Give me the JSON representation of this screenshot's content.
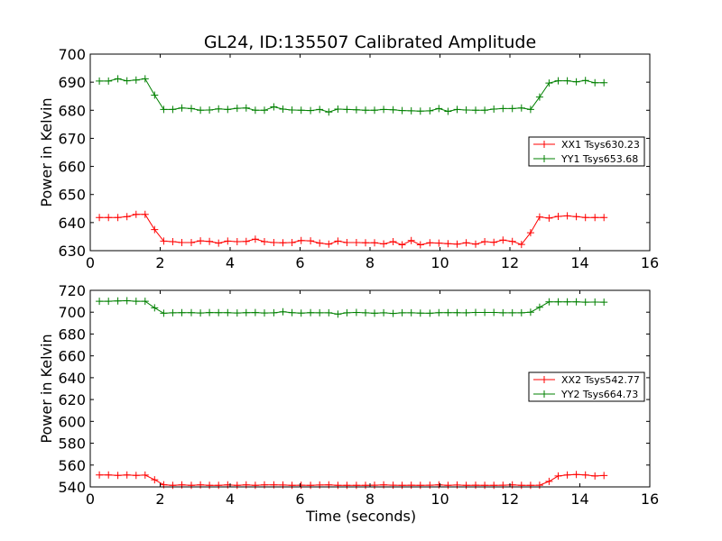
{
  "figure": {
    "title": "GL24, ID:135507 Calibrated Amplitude"
  },
  "chart_data": [
    {
      "type": "line",
      "title": "GL24, ID:135507 Calibrated Amplitude",
      "xlabel": "",
      "ylabel": "Power in Kelvin",
      "xlim": [
        0,
        16
      ],
      "ylim": [
        630,
        700
      ],
      "xticks": [
        0,
        2,
        4,
        6,
        8,
        10,
        12,
        14,
        16
      ],
      "yticks": [
        630,
        640,
        650,
        660,
        670,
        680,
        690,
        700
      ],
      "grid": false,
      "legend_position": "right",
      "x": [
        0.26,
        0.52,
        0.79,
        1.05,
        1.31,
        1.57,
        1.84,
        2.1,
        2.36,
        2.62,
        2.89,
        3.15,
        3.41,
        3.67,
        3.93,
        4.2,
        4.46,
        4.72,
        4.98,
        5.25,
        5.51,
        5.77,
        6.03,
        6.3,
        6.56,
        6.82,
        7.08,
        7.34,
        7.61,
        7.87,
        8.13,
        8.39,
        8.66,
        8.92,
        9.18,
        9.44,
        9.71,
        9.97,
        10.23,
        10.49,
        10.75,
        11.02,
        11.28,
        11.54,
        11.8,
        12.07,
        12.33,
        12.59,
        12.85,
        13.12,
        13.38,
        13.64,
        13.9,
        14.16,
        14.43,
        14.69
      ],
      "series": [
        {
          "name": "XX1 Tsys630.23",
          "color": "#ff0000",
          "values": [
            641.8,
            641.8,
            641.8,
            642.1,
            642.9,
            642.9,
            637.5,
            633.4,
            633.2,
            632.9,
            632.9,
            633.5,
            633.3,
            632.7,
            633.4,
            633.2,
            633.3,
            634.1,
            633.2,
            632.9,
            632.8,
            632.9,
            633.6,
            633.5,
            632.7,
            632.3,
            633.4,
            632.9,
            632.9,
            632.8,
            632.8,
            632.4,
            633.2,
            632.1,
            633.6,
            632.1,
            632.8,
            632.7,
            632.5,
            632.3,
            632.8,
            632.3,
            633.2,
            633.0,
            633.8,
            633.3,
            632.2,
            636.4,
            642.0,
            641.6,
            642.2,
            642.4,
            642.1,
            641.8,
            641.8,
            641.8
          ]
        },
        {
          "name": "YY1 Tsys653.68",
          "color": "#008000",
          "values": [
            690.4,
            690.4,
            691.2,
            690.5,
            690.8,
            691.2,
            685.4,
            680.3,
            680.3,
            680.8,
            680.6,
            680.0,
            680.1,
            680.5,
            680.3,
            680.7,
            680.8,
            680.0,
            680.0,
            681.2,
            680.4,
            680.1,
            680.0,
            679.9,
            680.3,
            679.4,
            680.4,
            680.3,
            680.2,
            680.0,
            680.0,
            680.3,
            680.2,
            679.9,
            679.8,
            679.7,
            679.8,
            680.6,
            679.6,
            680.3,
            680.1,
            680.0,
            680.0,
            680.4,
            680.6,
            680.6,
            680.8,
            680.3,
            684.7,
            689.7,
            690.5,
            690.5,
            690.1,
            690.6,
            689.8,
            689.8
          ]
        }
      ]
    },
    {
      "type": "line",
      "title": "",
      "xlabel": "Time (seconds)",
      "ylabel": "Power in Kelvin",
      "xlim": [
        0,
        16
      ],
      "ylim": [
        540,
        720
      ],
      "xticks": [
        0,
        2,
        4,
        6,
        8,
        10,
        12,
        14,
        16
      ],
      "yticks": [
        540,
        560,
        580,
        600,
        620,
        640,
        660,
        680,
        700,
        720
      ],
      "grid": false,
      "legend_position": "right",
      "x": [
        0.26,
        0.52,
        0.79,
        1.05,
        1.31,
        1.57,
        1.84,
        2.1,
        2.36,
        2.62,
        2.89,
        3.15,
        3.41,
        3.67,
        3.93,
        4.2,
        4.46,
        4.72,
        4.98,
        5.25,
        5.51,
        5.77,
        6.03,
        6.3,
        6.56,
        6.82,
        7.08,
        7.34,
        7.61,
        7.87,
        8.13,
        8.39,
        8.66,
        8.92,
        9.18,
        9.44,
        9.71,
        9.97,
        10.23,
        10.49,
        10.75,
        11.02,
        11.28,
        11.54,
        11.8,
        12.07,
        12.33,
        12.59,
        12.85,
        13.12,
        13.38,
        13.64,
        13.9,
        14.16,
        14.43,
        14.69
      ],
      "series": [
        {
          "name": "XX2 Tsys542.77",
          "color": "#ff0000",
          "values": [
            551.0,
            551.0,
            550.5,
            551.0,
            550.5,
            550.8,
            546.5,
            542.0,
            541.5,
            541.8,
            541.5,
            541.8,
            541.4,
            541.4,
            541.8,
            541.4,
            541.9,
            541.4,
            541.8,
            541.8,
            541.7,
            541.5,
            541.6,
            541.5,
            541.7,
            541.8,
            541.4,
            541.4,
            541.5,
            541.4,
            541.6,
            541.8,
            541.6,
            541.4,
            541.6,
            541.4,
            541.6,
            541.8,
            541.4,
            541.7,
            541.4,
            541.6,
            541.4,
            541.4,
            541.6,
            541.9,
            541.5,
            541.4,
            541.6,
            545.0,
            550.0,
            551.0,
            551.4,
            551.0,
            550.0,
            550.4
          ]
        },
        {
          "name": "YY2 Tsys664.73",
          "color": "#008000",
          "values": [
            710.0,
            710.0,
            710.3,
            710.5,
            710.0,
            710.0,
            704.0,
            699.0,
            699.4,
            699.5,
            699.5,
            699.3,
            699.7,
            699.6,
            699.5,
            699.3,
            699.5,
            699.7,
            699.3,
            699.4,
            700.4,
            699.6,
            699.2,
            699.6,
            699.4,
            699.4,
            698.2,
            699.4,
            699.8,
            699.4,
            699.0,
            699.4,
            698.9,
            699.4,
            699.4,
            699.2,
            699.0,
            699.6,
            699.5,
            699.5,
            699.4,
            699.8,
            699.8,
            699.8,
            699.4,
            699.4,
            699.4,
            700.0,
            704.5,
            709.4,
            709.4,
            709.4,
            709.4,
            709.2,
            709.3,
            709.2
          ]
        }
      ]
    }
  ]
}
